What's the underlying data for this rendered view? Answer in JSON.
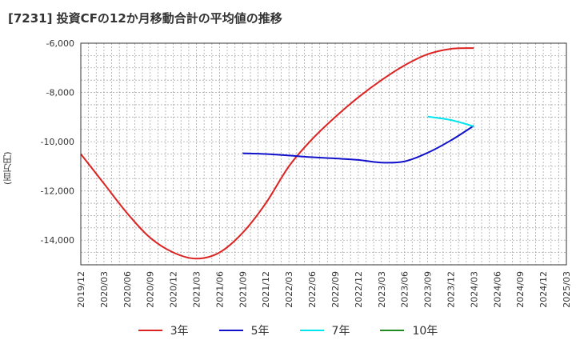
{
  "title": "[7231]  投資CFの12か月移動合計の平均値の推移",
  "ylabel": "(百万円)",
  "chart_data": {
    "type": "line",
    "title": "[7231]  投資CFの12か月移動合計の平均値の推移",
    "ylabel": "(百万円)",
    "xlabel": "",
    "ylim": [
      -15000,
      -6000
    ],
    "yticks": [
      -14000,
      -12000,
      -10000,
      -8000,
      -6000
    ],
    "ytick_labels": [
      "-14,000",
      "-12,000",
      "-10,000",
      "-8,000",
      "-6,000"
    ],
    "xlim": [
      "2019-12",
      "2025-03"
    ],
    "x_ticks": [
      "2019/12",
      "2020/03",
      "2020/06",
      "2020/09",
      "2020/12",
      "2021/03",
      "2021/06",
      "2021/09",
      "2021/12",
      "2022/03",
      "2022/06",
      "2022/09",
      "2022/12",
      "2023/03",
      "2023/06",
      "2023/09",
      "2023/12",
      "2024/03",
      "2024/06",
      "2024/09",
      "2024/12",
      "2025/03"
    ],
    "grid": true,
    "legend_position": "bottom",
    "series": [
      {
        "name": "3年",
        "color": "#dd2222",
        "x": [
          "2019/12",
          "2020/03",
          "2020/06",
          "2020/09",
          "2020/12",
          "2021/03",
          "2021/06",
          "2021/09",
          "2021/12",
          "2022/03",
          "2022/06",
          "2022/09",
          "2022/12",
          "2023/03",
          "2023/06",
          "2023/09",
          "2023/12",
          "2024/03"
        ],
        "values": [
          -10500,
          -11700,
          -12900,
          -13900,
          -14500,
          -14750,
          -14500,
          -13700,
          -12500,
          -11000,
          -9900,
          -9000,
          -8200,
          -7500,
          -6900,
          -6450,
          -6230,
          -6200
        ]
      },
      {
        "name": "5年",
        "color": "#1111cc",
        "x": [
          "2021/09",
          "2021/12",
          "2022/03",
          "2022/06",
          "2022/09",
          "2022/12",
          "2023/03",
          "2023/06",
          "2023/09",
          "2023/12",
          "2024/03"
        ],
        "values": [
          -10470,
          -10500,
          -10560,
          -10630,
          -10680,
          -10740,
          -10850,
          -10800,
          -10450,
          -9950,
          -9350
        ]
      },
      {
        "name": "7年",
        "color": "#00e5ee",
        "x": [
          "2023/09",
          "2023/12",
          "2024/03"
        ],
        "values": [
          -8980,
          -9120,
          -9380
        ]
      },
      {
        "name": "10年",
        "color": "#228b22",
        "x": [],
        "values": []
      }
    ]
  }
}
